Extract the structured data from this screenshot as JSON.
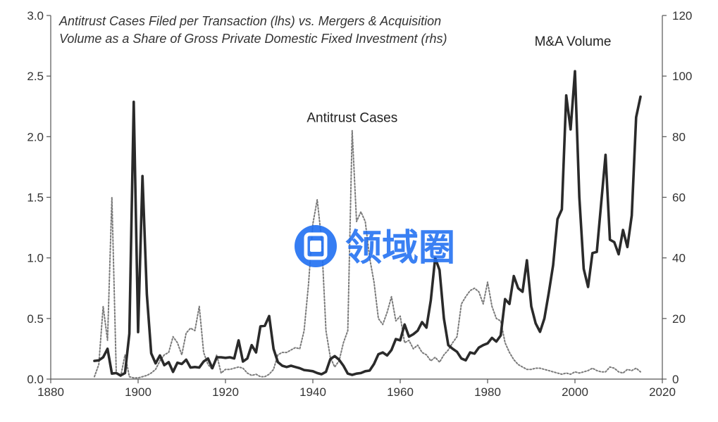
{
  "chart_data": {
    "type": "line",
    "title_lines": [
      "Antitrust Cases Filed per Transaction (lhs) vs. Mergers & Acquisition",
      "Volume as a Share of Gross Private Domestic Fixed Investment (rhs)"
    ],
    "xlim": [
      1880,
      2020
    ],
    "x_ticks": [
      "1880",
      "1900",
      "1920",
      "1940",
      "1960",
      "1980",
      "2000",
      "2020"
    ],
    "ylim_left": [
      0,
      3.0
    ],
    "y_ticks_left": [
      "0.0",
      "0.5",
      "1.0",
      "1.5",
      "2.0",
      "2.5",
      "3.0"
    ],
    "ylim_right": [
      0,
      120
    ],
    "y_ticks_right": [
      "0",
      "20",
      "40",
      "60",
      "80",
      "100",
      "120"
    ],
    "grid": false,
    "series": [
      {
        "name": "M&A Volume",
        "axis": "right",
        "style": "solid",
        "color": "#2a2a2a",
        "points": [
          [
            1890,
            6.0
          ],
          [
            1891,
            6.2
          ],
          [
            1892,
            7.2
          ],
          [
            1893,
            10.0
          ],
          [
            1894,
            1.8
          ],
          [
            1895,
            2.0
          ],
          [
            1896,
            1.2
          ],
          [
            1897,
            2.0
          ],
          [
            1898,
            15.0
          ],
          [
            1899,
            91.5
          ],
          [
            1900,
            15.5
          ],
          [
            1901,
            67.0
          ],
          [
            1902,
            28.0
          ],
          [
            1903,
            8.5
          ],
          [
            1904,
            5.2
          ],
          [
            1905,
            7.8
          ],
          [
            1906,
            4.6
          ],
          [
            1907,
            5.6
          ],
          [
            1908,
            2.4
          ],
          [
            1909,
            5.4
          ],
          [
            1910,
            5.0
          ],
          [
            1911,
            6.4
          ],
          [
            1912,
            3.8
          ],
          [
            1913,
            4.0
          ],
          [
            1914,
            3.8
          ],
          [
            1915,
            5.8
          ],
          [
            1916,
            6.8
          ],
          [
            1917,
            3.6
          ],
          [
            1918,
            7.2
          ],
          [
            1919,
            7.2
          ],
          [
            1920,
            7.0
          ],
          [
            1921,
            7.2
          ],
          [
            1922,
            6.8
          ],
          [
            1923,
            12.8
          ],
          [
            1924,
            5.8
          ],
          [
            1925,
            6.8
          ],
          [
            1926,
            11.2
          ],
          [
            1927,
            8.8
          ],
          [
            1928,
            17.4
          ],
          [
            1929,
            17.6
          ],
          [
            1930,
            20.8
          ],
          [
            1931,
            10.0
          ],
          [
            1932,
            5.6
          ],
          [
            1933,
            4.4
          ],
          [
            1934,
            4.0
          ],
          [
            1935,
            4.4
          ],
          [
            1936,
            4.0
          ],
          [
            1937,
            3.6
          ],
          [
            1938,
            3.0
          ],
          [
            1939,
            2.8
          ],
          [
            1940,
            2.6
          ],
          [
            1941,
            2.0
          ],
          [
            1942,
            1.6
          ],
          [
            1943,
            2.4
          ],
          [
            1944,
            6.6
          ],
          [
            1945,
            7.6
          ],
          [
            1946,
            6.4
          ],
          [
            1947,
            4.4
          ],
          [
            1948,
            1.8
          ],
          [
            1949,
            1.4
          ],
          [
            1950,
            1.8
          ],
          [
            1951,
            2.0
          ],
          [
            1952,
            2.6
          ],
          [
            1953,
            2.8
          ],
          [
            1954,
            5.0
          ],
          [
            1955,
            8.2
          ],
          [
            1956,
            8.8
          ],
          [
            1957,
            7.8
          ],
          [
            1958,
            9.6
          ],
          [
            1959,
            13.2
          ],
          [
            1960,
            12.8
          ],
          [
            1961,
            18.0
          ],
          [
            1962,
            14.0
          ],
          [
            1963,
            14.8
          ],
          [
            1964,
            16.0
          ],
          [
            1965,
            18.8
          ],
          [
            1966,
            17.0
          ],
          [
            1967,
            26.0
          ],
          [
            1968,
            40.0
          ],
          [
            1969,
            36.0
          ],
          [
            1970,
            20.0
          ],
          [
            1971,
            11.2
          ],
          [
            1972,
            10.0
          ],
          [
            1973,
            9.0
          ],
          [
            1974,
            6.8
          ],
          [
            1975,
            6.2
          ],
          [
            1976,
            8.8
          ],
          [
            1977,
            8.4
          ],
          [
            1978,
            10.4
          ],
          [
            1979,
            11.2
          ],
          [
            1980,
            11.8
          ],
          [
            1981,
            13.6
          ],
          [
            1982,
            12.4
          ],
          [
            1983,
            14.4
          ],
          [
            1984,
            26.4
          ],
          [
            1985,
            24.8
          ],
          [
            1986,
            34.0
          ],
          [
            1987,
            30.0
          ],
          [
            1988,
            28.8
          ],
          [
            1989,
            39.2
          ],
          [
            1990,
            24.0
          ],
          [
            1991,
            18.4
          ],
          [
            1992,
            15.6
          ],
          [
            1993,
            20.0
          ],
          [
            1994,
            28.4
          ],
          [
            1995,
            37.6
          ],
          [
            1996,
            52.8
          ],
          [
            1997,
            56.0
          ],
          [
            1998,
            93.6
          ],
          [
            1999,
            82.4
          ],
          [
            2000,
            101.6
          ],
          [
            2001,
            60.0
          ],
          [
            2002,
            36.4
          ],
          [
            2003,
            30.4
          ],
          [
            2004,
            41.6
          ],
          [
            2005,
            42.0
          ],
          [
            2006,
            58.0
          ],
          [
            2007,
            74.0
          ],
          [
            2008,
            46.0
          ],
          [
            2009,
            45.2
          ],
          [
            2010,
            41.2
          ],
          [
            2011,
            49.2
          ],
          [
            2012,
            43.6
          ],
          [
            2013,
            54.0
          ],
          [
            2014,
            86.4
          ],
          [
            2015,
            93.2
          ]
        ]
      },
      {
        "name": "Antitrust Cases",
        "axis": "left",
        "style": "dotted",
        "color": "#7a7a7a",
        "points": [
          [
            1890,
            0.02
          ],
          [
            1891,
            0.12
          ],
          [
            1892,
            0.6
          ],
          [
            1893,
            0.32
          ],
          [
            1894,
            1.5
          ],
          [
            1895,
            0.05
          ],
          [
            1896,
            0.02
          ],
          [
            1897,
            0.2
          ],
          [
            1898,
            0.02
          ],
          [
            1899,
            0.01
          ],
          [
            1900,
            0.01
          ],
          [
            1901,
            0.02
          ],
          [
            1902,
            0.03
          ],
          [
            1903,
            0.05
          ],
          [
            1904,
            0.08
          ],
          [
            1905,
            0.15
          ],
          [
            1906,
            0.2
          ],
          [
            1907,
            0.22
          ],
          [
            1908,
            0.35
          ],
          [
            1909,
            0.3
          ],
          [
            1910,
            0.2
          ],
          [
            1911,
            0.38
          ],
          [
            1912,
            0.42
          ],
          [
            1913,
            0.4
          ],
          [
            1914,
            0.6
          ],
          [
            1915,
            0.22
          ],
          [
            1916,
            0.12
          ],
          [
            1917,
            0.08
          ],
          [
            1918,
            0.2
          ],
          [
            1919,
            0.05
          ],
          [
            1920,
            0.08
          ],
          [
            1921,
            0.08
          ],
          [
            1922,
            0.09
          ],
          [
            1923,
            0.1
          ],
          [
            1924,
            0.09
          ],
          [
            1925,
            0.05
          ],
          [
            1926,
            0.03
          ],
          [
            1927,
            0.04
          ],
          [
            1928,
            0.02
          ],
          [
            1929,
            0.02
          ],
          [
            1930,
            0.04
          ],
          [
            1931,
            0.08
          ],
          [
            1932,
            0.2
          ],
          [
            1933,
            0.22
          ],
          [
            1934,
            0.22
          ],
          [
            1935,
            0.24
          ],
          [
            1936,
            0.26
          ],
          [
            1937,
            0.25
          ],
          [
            1938,
            0.4
          ],
          [
            1939,
            0.78
          ],
          [
            1940,
            1.28
          ],
          [
            1941,
            1.48
          ],
          [
            1942,
            1.15
          ],
          [
            1943,
            0.4
          ],
          [
            1944,
            0.18
          ],
          [
            1945,
            0.1
          ],
          [
            1946,
            0.15
          ],
          [
            1947,
            0.3
          ],
          [
            1948,
            0.4
          ],
          [
            1949,
            2.05
          ],
          [
            1950,
            1.3
          ],
          [
            1951,
            1.38
          ],
          [
            1952,
            1.3
          ],
          [
            1953,
            1.0
          ],
          [
            1954,
            0.8
          ],
          [
            1955,
            0.5
          ],
          [
            1956,
            0.45
          ],
          [
            1957,
            0.55
          ],
          [
            1958,
            0.68
          ],
          [
            1959,
            0.48
          ],
          [
            1960,
            0.52
          ],
          [
            1961,
            0.3
          ],
          [
            1962,
            0.32
          ],
          [
            1963,
            0.25
          ],
          [
            1964,
            0.28
          ],
          [
            1965,
            0.22
          ],
          [
            1966,
            0.2
          ],
          [
            1967,
            0.15
          ],
          [
            1968,
            0.18
          ],
          [
            1969,
            0.14
          ],
          [
            1970,
            0.2
          ],
          [
            1971,
            0.24
          ],
          [
            1972,
            0.3
          ],
          [
            1973,
            0.35
          ],
          [
            1974,
            0.62
          ],
          [
            1975,
            0.68
          ],
          [
            1976,
            0.73
          ],
          [
            1977,
            0.75
          ],
          [
            1978,
            0.72
          ],
          [
            1979,
            0.62
          ],
          [
            1980,
            0.8
          ],
          [
            1981,
            0.6
          ],
          [
            1982,
            0.5
          ],
          [
            1983,
            0.48
          ],
          [
            1984,
            0.3
          ],
          [
            1985,
            0.22
          ],
          [
            1986,
            0.16
          ],
          [
            1987,
            0.12
          ],
          [
            1988,
            0.1
          ],
          [
            1989,
            0.08
          ],
          [
            1990,
            0.08
          ],
          [
            1991,
            0.09
          ],
          [
            1992,
            0.09
          ],
          [
            1993,
            0.08
          ],
          [
            1994,
            0.07
          ],
          [
            1995,
            0.06
          ],
          [
            1996,
            0.05
          ],
          [
            1997,
            0.04
          ],
          [
            1998,
            0.05
          ],
          [
            1999,
            0.04
          ],
          [
            2000,
            0.06
          ],
          [
            2001,
            0.05
          ],
          [
            2002,
            0.06
          ],
          [
            2003,
            0.07
          ],
          [
            2004,
            0.09
          ],
          [
            2005,
            0.07
          ],
          [
            2006,
            0.06
          ],
          [
            2007,
            0.06
          ],
          [
            2008,
            0.1
          ],
          [
            2009,
            0.09
          ],
          [
            2010,
            0.06
          ],
          [
            2011,
            0.05
          ],
          [
            2012,
            0.08
          ],
          [
            2013,
            0.07
          ],
          [
            2014,
            0.09
          ],
          [
            2015,
            0.06
          ]
        ]
      }
    ],
    "annotations": [
      {
        "text": "M&A Volume",
        "x": 2000,
        "y_right": 110
      },
      {
        "text": "Antitrust Cases",
        "x": 1949,
        "y_left": 2.12
      }
    ]
  },
  "watermark": {
    "text": "领域圈",
    "color": "#1f6ff2",
    "icon": "logo-badge-icon"
  }
}
